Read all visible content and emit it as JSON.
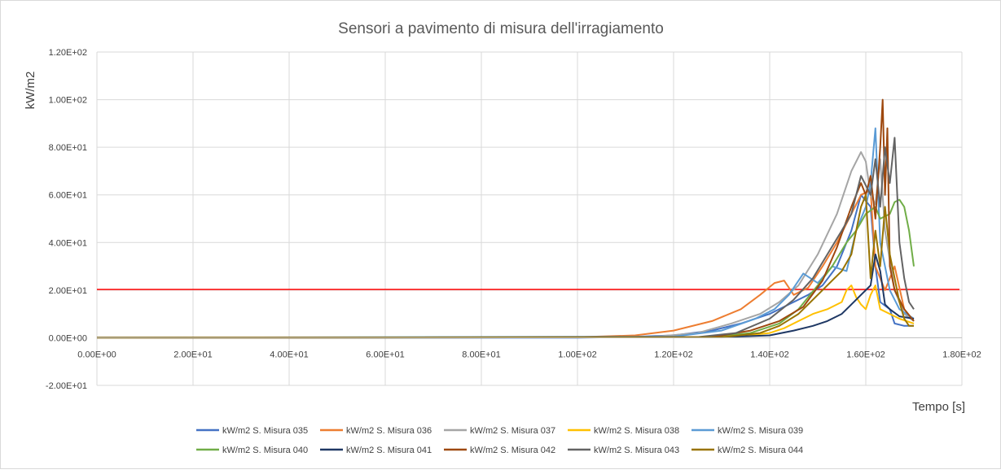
{
  "chart_data": {
    "type": "line",
    "title": "Sensori a pavimento di misura dell'irragiamento",
    "xlabel": "Tempo [s]",
    "ylabel": "kW/m2",
    "xlim": [
      0,
      180
    ],
    "ylim": [
      -20,
      120
    ],
    "x_ticks": [
      0,
      20,
      40,
      60,
      80,
      100,
      120,
      140,
      160,
      180
    ],
    "x_tick_labels": [
      "0.00E+00",
      "2.00E+01",
      "4.00E+01",
      "6.00E+01",
      "8.00E+01",
      "1.00E+02",
      "1.20E+02",
      "1.40E+02",
      "1.60E+02",
      "1.80E+02"
    ],
    "y_ticks": [
      -20,
      0,
      20,
      40,
      60,
      80,
      100,
      120
    ],
    "y_tick_labels": [
      "-2.00E+01",
      "0.00E+00",
      "2.00E+01",
      "4.00E+01",
      "6.00E+01",
      "8.00E+01",
      "1.00E+02",
      "1.20E+02"
    ],
    "grid": true,
    "legend_position": "bottom",
    "threshold": {
      "value": 20.3,
      "color": "#ff0000"
    },
    "series": [
      {
        "name": "kW/m2 S. Misura 035",
        "color": "#4472c4",
        "x": [
          0,
          100,
          110,
          120,
          128,
          134,
          140,
          144,
          148,
          151,
          154,
          157,
          159,
          161,
          162,
          163,
          165,
          166,
          168,
          170
        ],
        "y": [
          0,
          0,
          0.3,
          1,
          3,
          6,
          10,
          14,
          18,
          22,
          30,
          45,
          60,
          55,
          30,
          15,
          12,
          6,
          5,
          5
        ]
      },
      {
        "name": "kW/m2 S. Misura 036",
        "color": "#ed7d31",
        "x": [
          0,
          100,
          112,
          120,
          128,
          134,
          138,
          141,
          143,
          145,
          148,
          151,
          154,
          157,
          159,
          161,
          162,
          164,
          166,
          168,
          170
        ],
        "y": [
          0,
          0.2,
          1,
          3,
          7,
          12,
          18,
          23,
          24,
          18,
          21,
          30,
          40,
          52,
          60,
          62,
          30,
          20,
          30,
          12,
          7
        ]
      },
      {
        "name": "kW/m2 S. Misura 037",
        "color": "#a5a5a5",
        "x": [
          0,
          115,
          125,
          132,
          138,
          142,
          146,
          150,
          154,
          157,
          159,
          160,
          161,
          162,
          163,
          164,
          166,
          168,
          170
        ],
        "y": [
          0,
          0.3,
          2,
          6,
          10,
          15,
          22,
          35,
          52,
          70,
          78,
          74,
          60,
          56,
          75,
          45,
          20,
          10,
          7
        ]
      },
      {
        "name": "kW/m2 S. Misura 038",
        "color": "#ffc000",
        "x": [
          0,
          125,
          135,
          140,
          143,
          146,
          149,
          152,
          155,
          156,
          157,
          158,
          159,
          160,
          161,
          162,
          163,
          165,
          167,
          170
        ],
        "y": [
          0,
          0.2,
          1,
          2,
          4,
          7,
          10,
          12,
          15,
          20,
          22,
          17,
          14,
          12,
          18,
          22,
          12,
          10,
          8,
          6
        ]
      },
      {
        "name": "kW/m2 S. Misura 039",
        "color": "#5b9bd5",
        "x": [
          0,
          120,
          130,
          137,
          141,
          144,
          147,
          150,
          153,
          156,
          158,
          160,
          161,
          162,
          163,
          165,
          167,
          170
        ],
        "y": [
          0,
          0.5,
          3,
          8,
          12,
          18,
          27,
          23,
          30,
          28,
          45,
          55,
          65,
          88,
          40,
          20,
          12,
          8
        ]
      },
      {
        "name": "kW/m2 S. Misura 040",
        "color": "#70ad47",
        "x": [
          0,
          128,
          136,
          142,
          146,
          150,
          153,
          156,
          158,
          160,
          162,
          163,
          165,
          166,
          167,
          168,
          169,
          170
        ],
        "y": [
          0,
          0.3,
          2,
          6,
          12,
          22,
          30,
          40,
          45,
          52,
          55,
          50,
          52,
          57,
          58,
          55,
          45,
          30
        ]
      },
      {
        "name": "kW/m2 S. Misura 041",
        "color": "#1f3864",
        "x": [
          0,
          130,
          140,
          145,
          149,
          152,
          155,
          157,
          159,
          161,
          162,
          163,
          164,
          165,
          167,
          170
        ],
        "y": [
          0,
          0.2,
          1,
          3,
          5,
          7,
          10,
          14,
          18,
          22,
          35,
          28,
          14,
          12,
          9,
          8
        ]
      },
      {
        "name": "kW/m2 S. Misura 042",
        "color": "#9e480e",
        "x": [
          0,
          128,
          136,
          142,
          147,
          151,
          154,
          157,
          159,
          160,
          161,
          162,
          163,
          163.5,
          164,
          164.5,
          165,
          166,
          168,
          170
        ],
        "y": [
          0,
          0.3,
          3,
          7,
          13,
          24,
          38,
          55,
          65,
          60,
          68,
          50,
          80,
          100,
          60,
          88,
          30,
          20,
          12,
          7
        ]
      },
      {
        "name": "kW/m2 S. Misura 043",
        "color": "#636363",
        "x": [
          0,
          125,
          133,
          140,
          145,
          149,
          152,
          155,
          157,
          159,
          161,
          162,
          163,
          164,
          165,
          166,
          167,
          168,
          169,
          170
        ],
        "y": [
          0,
          0.3,
          2,
          8,
          16,
          25,
          35,
          45,
          52,
          68,
          60,
          75,
          55,
          80,
          65,
          84,
          40,
          25,
          15,
          12
        ]
      },
      {
        "name": "kW/m2 S. Misura 044",
        "color": "#997300",
        "x": [
          0,
          130,
          138,
          142,
          146,
          150,
          153,
          155,
          157,
          159,
          160,
          161,
          162,
          163,
          164,
          165,
          167,
          168,
          169,
          170
        ],
        "y": [
          0,
          0.2,
          2,
          5,
          10,
          18,
          24,
          28,
          35,
          55,
          60,
          25,
          45,
          30,
          55,
          35,
          15,
          8,
          5,
          5
        ]
      }
    ]
  }
}
